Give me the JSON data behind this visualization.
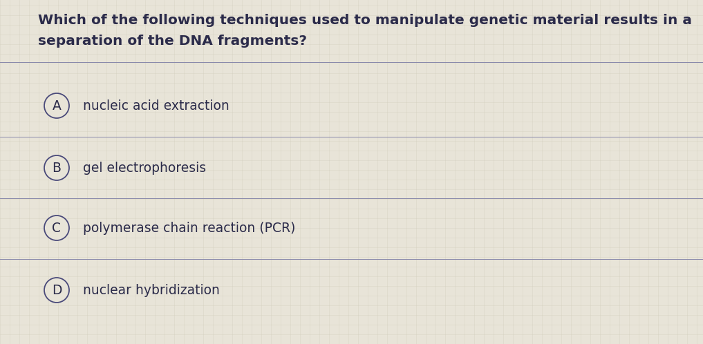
{
  "background_color": "#e8e4d8",
  "question_line1": "Which of the following techniques used to manipulate genetic material results in a",
  "question_line2": "separation of the DNA fragments?",
  "options": [
    {
      "label": "A",
      "text": "nucleic acid extraction"
    },
    {
      "label": "B",
      "text": "gel electrophoresis"
    },
    {
      "label": "C",
      "text": "polymerase chain reaction (PCR)"
    },
    {
      "label": "D",
      "text": "nuclear hybridization"
    }
  ],
  "question_fontsize": 14.5,
  "option_fontsize": 13.5,
  "text_color": "#2b2b4a",
  "circle_edge_color": "#4a4a7a",
  "line_color": "#8888aa",
  "line_width": 0.7,
  "fig_width": 10.17,
  "fig_height": 4.98,
  "grid_color": "#d0ccba",
  "grid_alpha": 0.6
}
